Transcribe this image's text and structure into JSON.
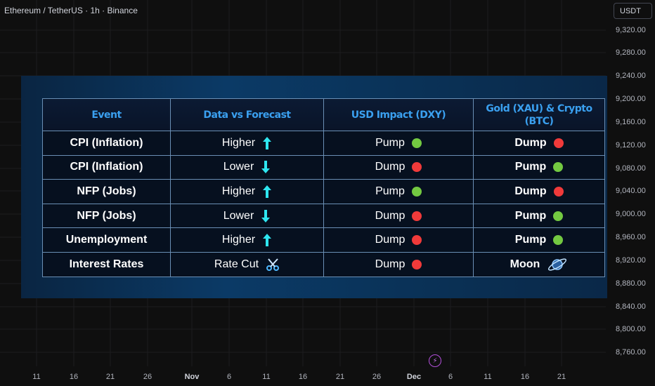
{
  "header": {
    "symbol_title": "Ethereum / TetherUS · 1h · Binance",
    "currency": "USDT"
  },
  "price_axis": [
    "9,320.00",
    "9,280.00",
    "9,240.00",
    "9,200.00",
    "9,160.00",
    "9,120.00",
    "9,080.00",
    "9,040.00",
    "9,000.00",
    "8,960.00",
    "8,920.00",
    "8,880.00",
    "8,840.00",
    "8,800.00",
    "8,760.00"
  ],
  "time_axis": [
    "11",
    "16",
    "21",
    "26",
    "Nov",
    "6",
    "11",
    "16",
    "21",
    "26",
    "Dec",
    "6",
    "11",
    "16",
    "21"
  ],
  "table": {
    "headers": [
      "Event",
      "Data vs Forecast",
      "USD Impact (DXY)",
      "Gold (XAU) & Crypto (BTC)"
    ],
    "rows": [
      {
        "event": "CPI (Inflation)",
        "data": "Higher",
        "data_icon": "arrow-up-icon",
        "usd": "Pump",
        "usd_icon": "green-dot-icon",
        "crypto": "Dump",
        "crypto_icon": "red-dot-icon"
      },
      {
        "event": "CPI (Inflation)",
        "data": "Lower",
        "data_icon": "arrow-down-icon",
        "usd": "Dump",
        "usd_icon": "red-dot-icon",
        "crypto": "Pump",
        "crypto_icon": "green-dot-icon"
      },
      {
        "event": "NFP (Jobs)",
        "data": "Higher",
        "data_icon": "arrow-up-icon",
        "usd": "Pump",
        "usd_icon": "green-dot-icon",
        "crypto": "Dump",
        "crypto_icon": "red-dot-icon"
      },
      {
        "event": "NFP (Jobs)",
        "data": "Lower",
        "data_icon": "arrow-down-icon",
        "usd": "Dump",
        "usd_icon": "red-dot-icon",
        "crypto": "Pump",
        "crypto_icon": "green-dot-icon"
      },
      {
        "event": "Unemployment",
        "data": "Higher",
        "data_icon": "arrow-up-icon",
        "usd": "Dump",
        "usd_icon": "red-dot-icon",
        "crypto": "Pump",
        "crypto_icon": "green-dot-icon"
      },
      {
        "event": "Interest Rates",
        "data": "Rate Cut",
        "data_icon": "scissors-icon",
        "usd": "Dump",
        "usd_icon": "red-dot-icon",
        "crypto": "Moon",
        "crypto_icon": "planet-icon"
      }
    ]
  },
  "colors": {
    "green": "#73c941",
    "red": "#f03a3a",
    "arrow": "#2ee6f0",
    "header_text": "#3aa0f0"
  }
}
